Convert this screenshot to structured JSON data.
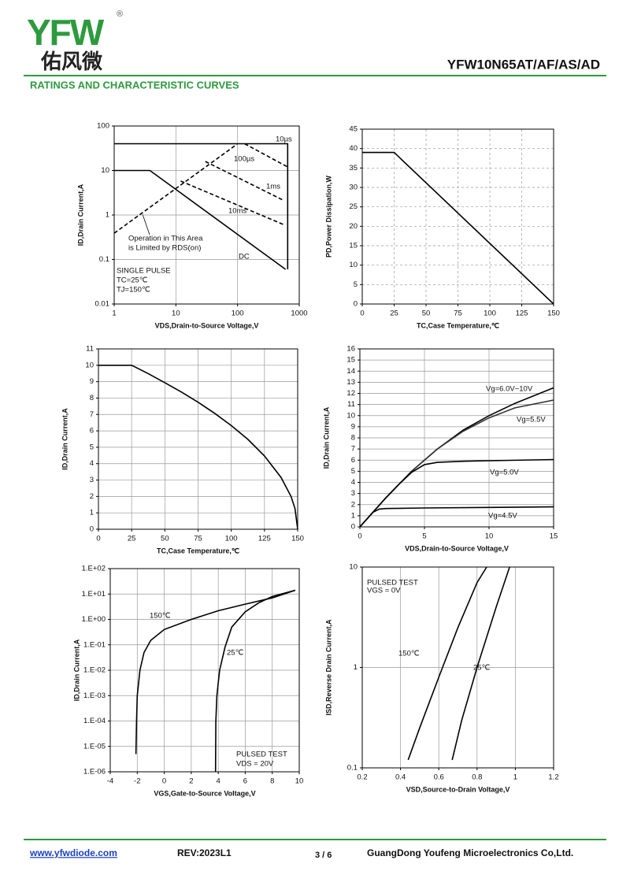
{
  "header": {
    "logo": "YFW",
    "logo_mark": "®",
    "logo_cn": "佑风微",
    "part_number": "YFW10N65AT/AF/AS/AD",
    "section_title": "RATINGS AND CHARACTERISTIC CURVES"
  },
  "footer": {
    "website": "www.yfwdiode.com",
    "revision": "REV:2023L1",
    "page": "3 / 6",
    "company": "GuangDong Youfeng Microelectronics Co,Ltd."
  },
  "chart_data": [
    {
      "type": "line",
      "xscale": "log",
      "yscale": "log",
      "grid": true,
      "grid_style": "solid",
      "x_label": "VDS,Drain-to-Source Voltage,V",
      "y_label": "ID,Drain Current,A",
      "xlim": [
        1,
        1000
      ],
      "ylim": [
        0.01,
        100
      ],
      "xticks": [
        1,
        10,
        100,
        1000
      ],
      "yticks": [
        0.01,
        0.1,
        1,
        10,
        100
      ],
      "annotations": [
        "Operation in This Area",
        "is Limited by RDS(on)",
        "SINGLE PULSE",
        "TC=25℃",
        "TJ=150℃"
      ],
      "series": [
        {
          "color": "#000",
          "dash": true,
          "x": [
            1,
            98
          ],
          "values": [
            0.39,
            39
          ]
        },
        {
          "name": "10µs",
          "color": "#000",
          "x": [
            1,
            650,
            650
          ],
          "values": [
            40,
            40,
            0.06
          ]
        },
        {
          "name": "100µs",
          "color": "#000",
          "dash": true,
          "x": [
            130,
            650
          ],
          "values": [
            40,
            12
          ]
        },
        {
          "name": "1ms",
          "color": "#000",
          "dash": true,
          "x": [
            30,
            570
          ],
          "values": [
            16,
            2.1
          ]
        },
        {
          "name": "10ms",
          "color": "#000",
          "dash": true,
          "x": [
            12,
            570
          ],
          "values": [
            5.8,
            0.6
          ]
        },
        {
          "name": "DC",
          "color": "#000",
          "x": [
            1,
            3.8,
            600
          ],
          "values": [
            10,
            10,
            0.06
          ]
        }
      ]
    },
    {
      "type": "line",
      "grid": true,
      "grid_style": "dashed",
      "x_label": "TC,Case Temperature,℃",
      "y_label": "PD,Power Dissipation,W",
      "xlim": [
        0,
        150
      ],
      "ylim": [
        0,
        45
      ],
      "xticks": [
        0,
        25,
        50,
        75,
        100,
        125,
        150
      ],
      "yticks": [
        0,
        5,
        10,
        15,
        20,
        25,
        30,
        35,
        40,
        45
      ],
      "series": [
        {
          "color": "#000",
          "x": [
            0,
            25,
            150
          ],
          "values": [
            39,
            39,
            0
          ]
        }
      ]
    },
    {
      "type": "line",
      "grid": true,
      "grid_style": "solid",
      "x_label": "TC,Case Temperature,℃",
      "y_label": "ID,Drain Current,A",
      "xlim": [
        0,
        150
      ],
      "ylim": [
        0,
        11
      ],
      "xticks": [
        0,
        25,
        50,
        75,
        100,
        125,
        150
      ],
      "yticks": [
        0,
        1,
        2,
        3,
        4,
        5,
        6,
        7,
        8,
        9,
        10,
        11
      ],
      "series": [
        {
          "color": "#000",
          "x": [
            0,
            25,
            37.5,
            50,
            62.5,
            75,
            87.5,
            100,
            112.5,
            125,
            137.5,
            145,
            148,
            150
          ],
          "values": [
            10,
            10,
            9.49,
            8.94,
            8.37,
            7.75,
            7.07,
            6.32,
            5.48,
            4.47,
            3.16,
            2.0,
            1.26,
            0
          ]
        }
      ]
    },
    {
      "type": "line",
      "grid": true,
      "grid_style": "solid",
      "x_label": "VDS,Drain-to-Source Voltage,V",
      "y_label": "ID,Drain Current,A",
      "xlim": [
        0,
        15
      ],
      "ylim": [
        0,
        16
      ],
      "xticks": [
        0,
        5,
        10,
        15
      ],
      "yticks": [
        0,
        1,
        2,
        3,
        4,
        5,
        6,
        7,
        8,
        9,
        10,
        11,
        12,
        13,
        14,
        15,
        16
      ],
      "series": [
        {
          "name": "Vg=6.0V~10V",
          "color": "#000",
          "x": [
            0,
            2,
            4,
            6,
            8,
            10,
            12,
            15
          ],
          "values": [
            0,
            2.6,
            5,
            7,
            8.7,
            10,
            11.1,
            12.5
          ]
        },
        {
          "name": "Vg=5.5V",
          "color": "#333",
          "x": [
            0,
            2,
            4,
            6,
            8,
            10,
            12,
            15
          ],
          "values": [
            0,
            2.6,
            5,
            7,
            8.6,
            9.8,
            10.7,
            11.4
          ]
        },
        {
          "name": "Vg=5.0V",
          "color": "#000",
          "x": [
            0,
            2,
            3,
            4,
            5,
            6,
            8,
            10,
            15
          ],
          "values": [
            0,
            2.6,
            3.8,
            4.9,
            5.6,
            5.8,
            5.9,
            5.95,
            6.05
          ]
        },
        {
          "name": "Vg=4.5V",
          "color": "#000",
          "x": [
            0,
            1,
            1.5,
            2,
            5,
            10,
            15
          ],
          "values": [
            0,
            1.3,
            1.6,
            1.65,
            1.7,
            1.75,
            1.8
          ]
        }
      ]
    },
    {
      "type": "line",
      "yscale": "log",
      "grid": true,
      "grid_style": "solid",
      "x_label": "VGS,Gate-to-Source Voltage,V",
      "y_label": "ID,Drain Current,A",
      "xlim": [
        -4,
        10
      ],
      "ylim": [
        1e-06,
        100
      ],
      "xticks": [
        -4,
        -2,
        0,
        2,
        4,
        6,
        8,
        10
      ],
      "yticks": [
        {
          "value": 1e-06,
          "label": "1.E-06"
        },
        {
          "value": 1e-05,
          "label": "1.E-05"
        },
        {
          "value": 0.0001,
          "label": "1.E-04"
        },
        {
          "value": 0.001,
          "label": "1.E-03"
        },
        {
          "value": 0.01,
          "label": "1.E-02"
        },
        {
          "value": 0.1,
          "label": "1.E-01"
        },
        {
          "value": 1,
          "label": "1.E+00"
        },
        {
          "value": 10,
          "label": "1.E+01"
        },
        {
          "value": 100,
          "label": "1.E+02"
        }
      ],
      "annotations": [
        "PULSED TEST",
        "VDS = 20V"
      ],
      "series": [
        {
          "name": "150℃",
          "color": "#000",
          "x": [
            -2.1,
            -2.05,
            -2,
            -1.8,
            -1.5,
            -1,
            0,
            2,
            4,
            6,
            8,
            9.7
          ],
          "values": [
            5e-06,
            0.0001,
            0.001,
            0.01,
            0.05,
            0.15,
            0.4,
            1,
            2.2,
            4,
            7,
            14
          ]
        },
        {
          "name": "25℃",
          "color": "#000",
          "x": [
            3.8,
            3.82,
            3.9,
            4.1,
            4.5,
            5,
            6,
            7,
            8,
            9.7
          ],
          "values": [
            1e-06,
            0.0001,
            0.001,
            0.01,
            0.08,
            0.5,
            2,
            4.5,
            8,
            14
          ]
        }
      ]
    },
    {
      "type": "line",
      "yscale": "log",
      "grid": true,
      "grid_style": "solid",
      "x_label": "VSD,Source-to-Drain Voltage,V",
      "y_label": "ISD,Reverse Drain Current,A",
      "xlim": [
        0.2,
        1.2
      ],
      "ylim": [
        0.1,
        10
      ],
      "xticks": [
        0.2,
        0.4,
        0.6,
        0.8,
        1,
        1.2
      ],
      "yticks": [
        0.1,
        1,
        10
      ],
      "annotations": [
        "PULSED TEST",
        "VGS = 0V"
      ],
      "series": [
        {
          "name": "150℃",
          "color": "#000",
          "x": [
            0.44,
            0.5,
            0.6,
            0.7,
            0.8,
            0.85
          ],
          "values": [
            0.12,
            0.25,
            0.8,
            2.5,
            7,
            10
          ]
        },
        {
          "name": "25℃",
          "color": "#000",
          "x": [
            0.67,
            0.72,
            0.8,
            0.9,
            0.97
          ],
          "values": [
            0.12,
            0.3,
            1,
            4,
            10
          ]
        }
      ]
    }
  ]
}
